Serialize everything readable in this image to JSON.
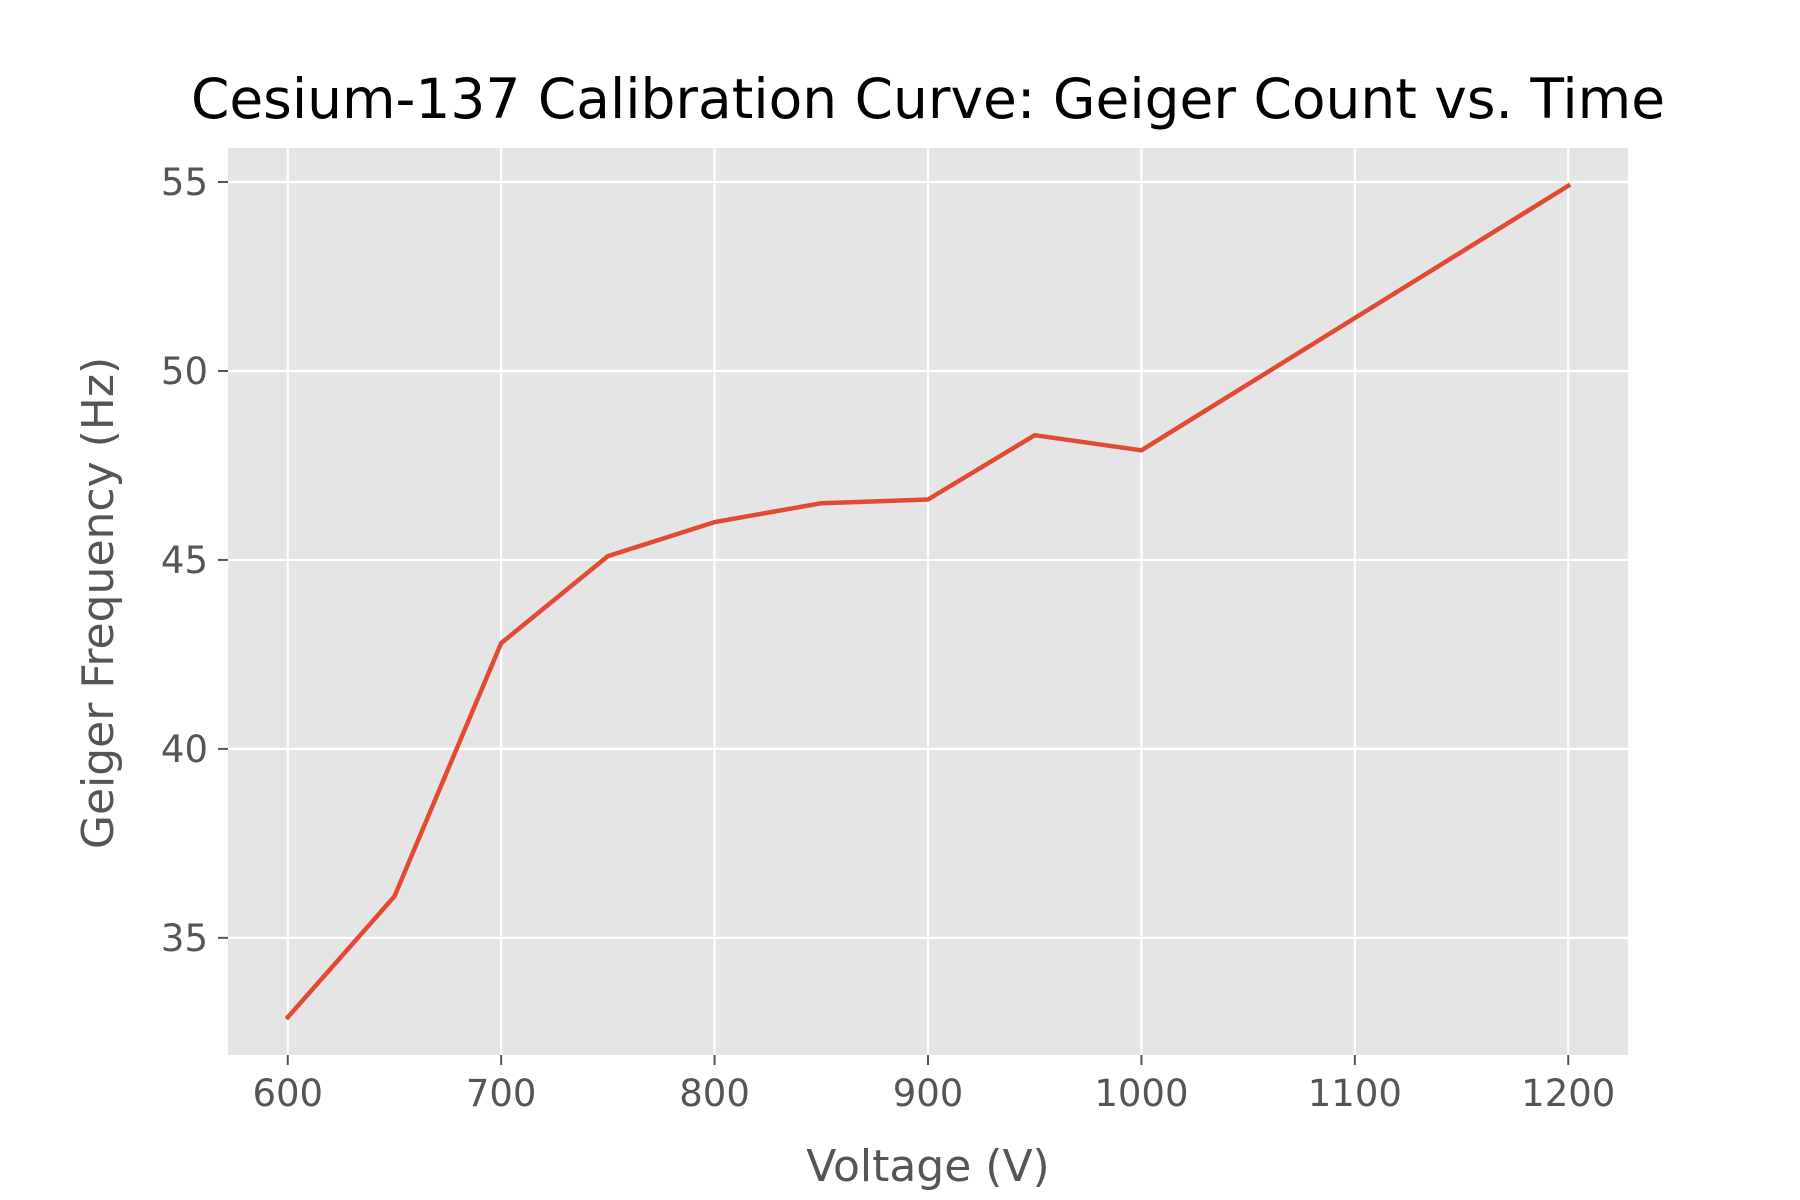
{
  "chart_data": {
    "type": "line",
    "title": "Cesium-137 Calibration Curve: Geiger Count vs. Time",
    "xlabel": "Voltage (V)",
    "ylabel": "Geiger Frequency (Hz)",
    "xlim": [
      572,
      1228
    ],
    "ylim": [
      31.9,
      55.9
    ],
    "xticks": [
      600,
      700,
      800,
      900,
      1000,
      1100,
      1200
    ],
    "yticks": [
      35,
      40,
      45,
      50,
      55
    ],
    "grid": true,
    "series": [
      {
        "x": [
          600,
          650,
          700,
          750,
          800,
          850,
          900,
          950,
          1000,
          1200
        ],
        "y": [
          32.9,
          36.1,
          42.8,
          45.1,
          46.0,
          46.5,
          46.6,
          48.3,
          47.9,
          54.9
        ]
      }
    ],
    "colors": {
      "background": "#e5e5e5",
      "grid": "#ffffff",
      "line": "#e24a33",
      "text": "#555555"
    }
  }
}
